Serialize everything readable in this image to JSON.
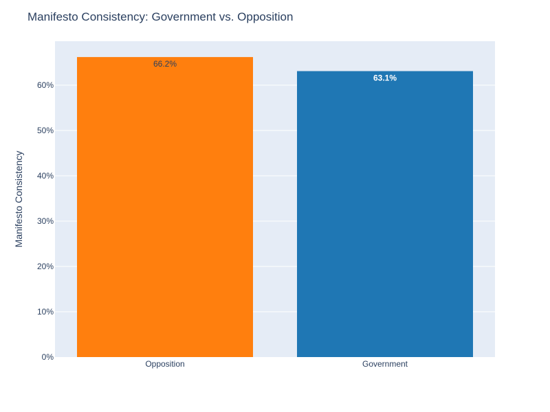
{
  "chart_data": {
    "type": "bar",
    "title": "Manifesto Consistency: Government vs. Opposition",
    "xlabel": "",
    "ylabel": "Manifesto Consistency",
    "categories": [
      "Opposition",
      "Government"
    ],
    "values": [
      66.2,
      63.1
    ],
    "data_labels": [
      "66.2%",
      "63.1%"
    ],
    "bar_colors": [
      "#ff7f0e",
      "#1f77b4"
    ],
    "label_colors": [
      "#2a3f5f",
      "#ffffff"
    ],
    "ylim": [
      0,
      69.7
    ],
    "yticks": [
      0,
      10,
      20,
      30,
      40,
      50,
      60
    ],
    "ytick_labels": [
      "0%",
      "10%",
      "20%",
      "30%",
      "40%",
      "50%",
      "60%"
    ],
    "plot_background": "#e5ecf6",
    "grid": true,
    "legend": "none"
  }
}
